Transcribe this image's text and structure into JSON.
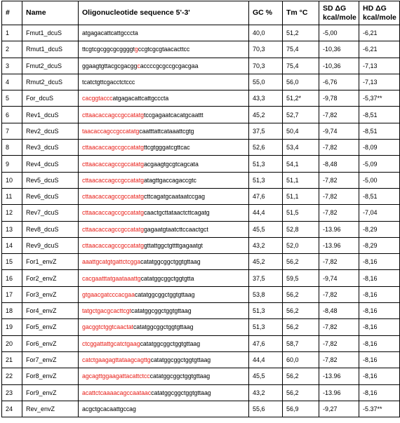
{
  "headers": {
    "num": "#",
    "name": "Name",
    "seq": "Oligonucleotide sequence 5'-3'",
    "gc": "GC %",
    "tm": "Tm °C",
    "sd_line1": "SD ΔG",
    "sd_line2": "kcal/mole",
    "hd_line1": "HD ΔG",
    "hd_line2": "kcal/mole"
  },
  "colors": {
    "highlight": "#e8201a",
    "text": "#000000",
    "border": "#000000"
  },
  "rows": [
    {
      "num": "1",
      "name": "Fmut1_dcuS",
      "seq": [
        {
          "t": "atgagacattcattgcccta",
          "r": false
        }
      ],
      "gc": "40,0",
      "tm": "51,2",
      "sd": "-5,00",
      "hd": "-6,21"
    },
    {
      "num": "2",
      "name": "Rmut1_dcuS",
      "seq": [
        {
          "t": "ttcgtcgcggcgcggggt",
          "r": false
        },
        {
          "t": "g",
          "r": true
        },
        {
          "t": "ccgtcgcgtaacacttcc",
          "r": false
        }
      ],
      "gc": "70,3",
      "tm": "75,4",
      "sd": "-10,36",
      "hd": "-6,21"
    },
    {
      "num": "3",
      "name": "Fmut2_dcuS",
      "seq": [
        {
          "t": "ggaagtgttacgcgacgg",
          "r": false
        },
        {
          "t": "c",
          "r": true
        },
        {
          "t": "accccgcgccgcgacgaa",
          "r": false
        }
      ],
      "gc": "70,3",
      "tm": "75,4",
      "sd": "-10,36",
      "hd": "-7,13"
    },
    {
      "num": "4",
      "name": "Rmut2_dcuS",
      "seq": [
        {
          "t": "tcatctgttcgacctctccc",
          "r": false
        }
      ],
      "gc": "55,0",
      "tm": "56,0",
      "sd": "-6,76",
      "hd": "-7,13"
    },
    {
      "num": "5",
      "name": "For_dcuS",
      "seq": [
        {
          "t": "cacggtaccc",
          "r": true
        },
        {
          "t": "atgagacattcattgcccta",
          "r": false
        }
      ],
      "gc": "43,3",
      "tm": "51,2*",
      "sd": "-9,78",
      "hd": "-5,37**"
    },
    {
      "num": "6",
      "name": "Rev1_dcuS",
      "seq": [
        {
          "t": "cttaacaccagccgccatatg",
          "r": true
        },
        {
          "t": "tccgagaatcacatgcaattt",
          "r": false
        }
      ],
      "gc": "45,2",
      "tm": "52,7",
      "sd": "-7,82",
      "hd": "-8,51"
    },
    {
      "num": "7",
      "name": "Rev2_dcuS",
      "seq": [
        {
          "t": "taacaccagccgccatatg",
          "r": true
        },
        {
          "t": "caatttattcataaattcgtg",
          "r": false
        }
      ],
      "gc": "37,5",
      "tm": "50,4",
      "sd": "-9,74",
      "hd": "-8,51"
    },
    {
      "num": "8",
      "name": "Rev3_dcuS",
      "seq": [
        {
          "t": "cttaacaccagccgccatatg",
          "r": true
        },
        {
          "t": "ttcgtgggatcgttcac",
          "r": false
        }
      ],
      "gc": "52,6",
      "tm": "53,4",
      "sd": "-7,82",
      "hd": "-8,09"
    },
    {
      "num": "9",
      "name": "Rev4_dcuS",
      "seq": [
        {
          "t": "cttaacaccagccgccatatg",
          "r": true
        },
        {
          "t": "acgaagtgcgtcagcata",
          "r": false
        }
      ],
      "gc": "51,3",
      "tm": "54,1",
      "sd": "-8,48",
      "hd": "-5,09"
    },
    {
      "num": "10",
      "name": "Rev5_dcuS",
      "seq": [
        {
          "t": "cttaacaccagccgccatatg",
          "r": true
        },
        {
          "t": "atagttgaccagaccgtc",
          "r": false
        }
      ],
      "gc": "51,3",
      "tm": "51,1",
      "sd": "-7,82",
      "hd": "-5,00"
    },
    {
      "num": "11",
      "name": "Rev6_dcuS",
      "seq": [
        {
          "t": "cttaacaccagccgccatatg",
          "r": true
        },
        {
          "t": "cttcagatgcaataatccgag",
          "r": false
        }
      ],
      "gc": "47,6",
      "tm": "51,1",
      "sd": "-7,82",
      "hd": "-8,51"
    },
    {
      "num": "12",
      "name": "Rev7_dcuS",
      "seq": [
        {
          "t": "cttaacaccagccgccatatg",
          "r": true
        },
        {
          "t": "caactgcttataactcttcagatg",
          "r": false
        }
      ],
      "gc": "44,4",
      "tm": "51,5",
      "sd": "-7,82",
      "hd": "-7,04"
    },
    {
      "num": "13",
      "name": "Rev8_dcuS",
      "seq": [
        {
          "t": "cttaacaccagccgccatatg",
          "r": true
        },
        {
          "t": "gagaatgtaatcttccaactgct",
          "r": false
        }
      ],
      "gc": "45,5",
      "tm": "52,8",
      "sd": "-13.96",
      "hd": "-8,29"
    },
    {
      "num": "14",
      "name": "Rev9_dcuS",
      "seq": [
        {
          "t": "cttaacaccagccgccatatg",
          "r": true
        },
        {
          "t": "gttattggctgttttgagaatgt",
          "r": false
        }
      ],
      "gc": "43,2",
      "tm": "52,0",
      "sd": "-13.96",
      "hd": "-8,29"
    },
    {
      "num": "15",
      "name": "For1_envZ",
      "seq": [
        {
          "t": "aaattgcatgtgattctcgga",
          "r": true
        },
        {
          "t": "catatggcggctggtgttaag",
          "r": false
        }
      ],
      "gc": "45,2",
      "tm": "56,2",
      "sd": "-7,82",
      "hd": "-8,16"
    },
    {
      "num": "16",
      "name": "For2_envZ",
      "seq": [
        {
          "t": "cacgaatttatgaataaattg",
          "r": true
        },
        {
          "t": "catatggcggctggtgtta",
          "r": false
        }
      ],
      "gc": "37,5",
      "tm": "59,5",
      "sd": "-9,74",
      "hd": "-8,16"
    },
    {
      "num": "17",
      "name": "For3_envZ",
      "seq": [
        {
          "t": "gtgaacgatcccacgaa",
          "r": true
        },
        {
          "t": "catatggcggctggtgttaag",
          "r": false
        }
      ],
      "gc": "53,8",
      "tm": "56,2",
      "sd": "-7,82",
      "hd": "-8,16"
    },
    {
      "num": "18",
      "name": "For4_envZ",
      "seq": [
        {
          "t": "tatgctgacgcacttcgt",
          "r": true
        },
        {
          "t": "catatggcggctggtgttaag",
          "r": false
        }
      ],
      "gc": "51,3",
      "tm": "56,2",
      "sd": "-8,48",
      "hd": "-8,16"
    },
    {
      "num": "19",
      "name": "For5_envZ",
      "seq": [
        {
          "t": "gacggtctggtcaactat",
          "r": true
        },
        {
          "t": "catatggcggctggtgttaag",
          "r": false
        }
      ],
      "gc": "51,3",
      "tm": "56,2",
      "sd": "-7,82",
      "hd": "-8,16"
    },
    {
      "num": "20",
      "name": "For6_envZ",
      "seq": [
        {
          "t": "ctcggattattgcatctgaag",
          "r": true
        },
        {
          "t": "catatggcggctggtgttaag",
          "r": false
        }
      ],
      "gc": "47,6",
      "tm": "58,7",
      "sd": "-7,82",
      "hd": "-8,16"
    },
    {
      "num": "21",
      "name": "For7_envZ",
      "seq": [
        {
          "t": "catctgaagagttataagcagttg",
          "r": true
        },
        {
          "t": "catatggcggctggtgttaag",
          "r": false
        }
      ],
      "gc": "44,4",
      "tm": "60,0",
      "sd": "-7,82",
      "hd": "-8,16"
    },
    {
      "num": "22",
      "name": "For8_envZ",
      "seq": [
        {
          "t": "agcagttggaagattacattctcc",
          "r": true
        },
        {
          "t": "catatggcggctggtgttaag",
          "r": false
        }
      ],
      "gc": "45,5",
      "tm": "56,2",
      "sd": "-13.96",
      "hd": "-8,16"
    },
    {
      "num": "23",
      "name": "For9_envZ",
      "seq": [
        {
          "t": "acattctcaaaacagccaataac",
          "r": true
        },
        {
          "t": "catatggcggctggtgttaag",
          "r": false
        }
      ],
      "gc": "43,2",
      "tm": "56,2",
      "sd": "-13.96",
      "hd": "-8,16"
    },
    {
      "num": "24",
      "name": "Rev_envZ",
      "seq": [
        {
          "t": "acgctgcacaattgccag",
          "r": false
        }
      ],
      "gc": "55,6",
      "tm": "56,9",
      "sd": "-9,27",
      "hd": "-5.37**"
    }
  ]
}
